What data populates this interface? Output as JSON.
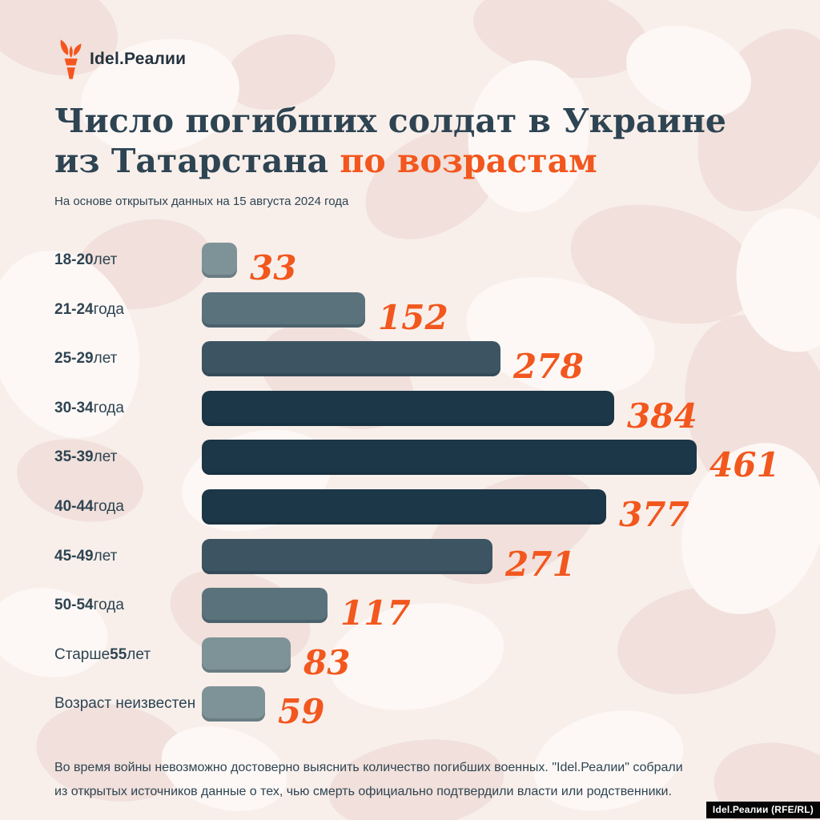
{
  "brand": {
    "name": "Idel.Реалии",
    "torch_color": "#f4551e",
    "text_color": "#24333f"
  },
  "title": {
    "line1": "Число погибших солдат в Украине",
    "line2_dark": "из Татарстана ",
    "line2_accent": "по возрастам",
    "dark_color": "#2e4452",
    "accent_color": "#f2571e"
  },
  "subtitle": "На основе открытых данных на 15 августа 2024 года",
  "chart_data": {
    "type": "bar",
    "orientation": "horizontal",
    "title": "Число погибших солдат в Украине из Татарстана по возрастам",
    "xlabel": "",
    "ylabel": "",
    "value_range": [
      0,
      461
    ],
    "grid": false,
    "legend": false,
    "value_label_color": "#f2571e",
    "categories": [
      "18-20 лет",
      "21-24 года",
      "25-29 лет",
      "30-34 года",
      "35-39 лет",
      "40-44 года",
      "45-49 лет",
      "50-54 года",
      "Старше 55 лет",
      "Возраст неизвестен"
    ],
    "values": [
      33,
      152,
      278,
      384,
      461,
      377,
      271,
      117,
      83,
      59
    ],
    "bars": [
      {
        "label_segments": [
          {
            "t": "18-20",
            "b": true
          },
          {
            "t": " лет",
            "b": false
          }
        ],
        "value": "33",
        "num": 33,
        "color": "#7e9397"
      },
      {
        "label_segments": [
          {
            "t": "21-24",
            "b": true
          },
          {
            "t": " года",
            "b": false
          }
        ],
        "value": "152",
        "num": 152,
        "color": "#5a727c"
      },
      {
        "label_segments": [
          {
            "t": "25-29",
            "b": true
          },
          {
            "t": " лет",
            "b": false
          }
        ],
        "value": "278",
        "num": 278,
        "color": "#3d5563"
      },
      {
        "label_segments": [
          {
            "t": "30-34",
            "b": true
          },
          {
            "t": " года",
            "b": false
          }
        ],
        "value": "384",
        "num": 384,
        "color": "#1c3748"
      },
      {
        "label_segments": [
          {
            "t": "35-39",
            "b": true
          },
          {
            "t": " лет",
            "b": false
          }
        ],
        "value": "461",
        "num": 461,
        "color": "#1c3748"
      },
      {
        "label_segments": [
          {
            "t": "40-44",
            "b": true
          },
          {
            "t": " года",
            "b": false
          }
        ],
        "value": "377",
        "num": 377,
        "color": "#1c3748"
      },
      {
        "label_segments": [
          {
            "t": "45-49",
            "b": true
          },
          {
            "t": " лет",
            "b": false
          }
        ],
        "value": "271",
        "num": 271,
        "color": "#3d5563"
      },
      {
        "label_segments": [
          {
            "t": "50-54",
            "b": true
          },
          {
            "t": " года",
            "b": false
          }
        ],
        "value": "117",
        "num": 117,
        "color": "#5a727c"
      },
      {
        "label_segments": [
          {
            "t": "Старше ",
            "b": false
          },
          {
            "t": "55",
            "b": true
          },
          {
            "t": " лет",
            "b": false
          }
        ],
        "value": "83",
        "num": 83,
        "color": "#7e9397"
      },
      {
        "label_segments": [
          {
            "t": "Возраст неизвестен",
            "b": false
          }
        ],
        "value": "59",
        "num": 59,
        "color": "#7e9397"
      }
    ]
  },
  "footer": "Во время войны невозможно достоверно выяснить количество погибших военных. \"Idel.Реалии\" собрали из открытых источников данные о тех, чью смерть официально подтвердили власти или родственники.",
  "watermark": "Idel.Реалии (RFE/RL)"
}
